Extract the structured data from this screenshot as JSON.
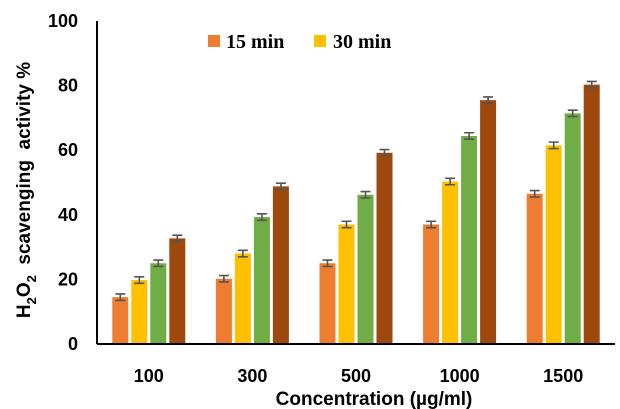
{
  "chart_data": {
    "type": "bar",
    "title": "",
    "xlabel": "Concentration (µg/ml)",
    "ylabel_parts": {
      "h": "H",
      "sub1": "2",
      "o": "O",
      "sub2": "2",
      "rest": "  scavenging  activity %"
    },
    "ylim": [
      0,
      100
    ],
    "yticks": [
      "0",
      "20",
      "40",
      "60",
      "80",
      "100"
    ],
    "categories": [
      "100",
      "300",
      "500",
      "1000",
      "1500"
    ],
    "grid": false,
    "legend_position": "top",
    "series": [
      {
        "name": "15 min",
        "color": "#ED7D31",
        "values": [
          14.5,
          20.2,
          25.0,
          37.0,
          46.5
        ],
        "errors": [
          1.0,
          1.0,
          1.0,
          1.0,
          1.0
        ]
      },
      {
        "name": "30 min",
        "color": "#FFC000",
        "values": [
          19.8,
          28.0,
          37.0,
          50.3,
          61.5
        ],
        "errors": [
          1.0,
          1.0,
          1.0,
          1.0,
          1.0
        ]
      },
      {
        "color": "#70AD47",
        "values": [
          25.0,
          39.3,
          46.2,
          64.4,
          71.4
        ],
        "errors": [
          1.0,
          1.0,
          1.0,
          1.0,
          1.0
        ]
      },
      {
        "color": "#9E480E",
        "values": [
          32.7,
          48.8,
          59.2,
          75.5,
          80.3
        ],
        "errors": [
          1.0,
          1.0,
          1.0,
          1.0,
          1.0
        ]
      }
    ]
  }
}
